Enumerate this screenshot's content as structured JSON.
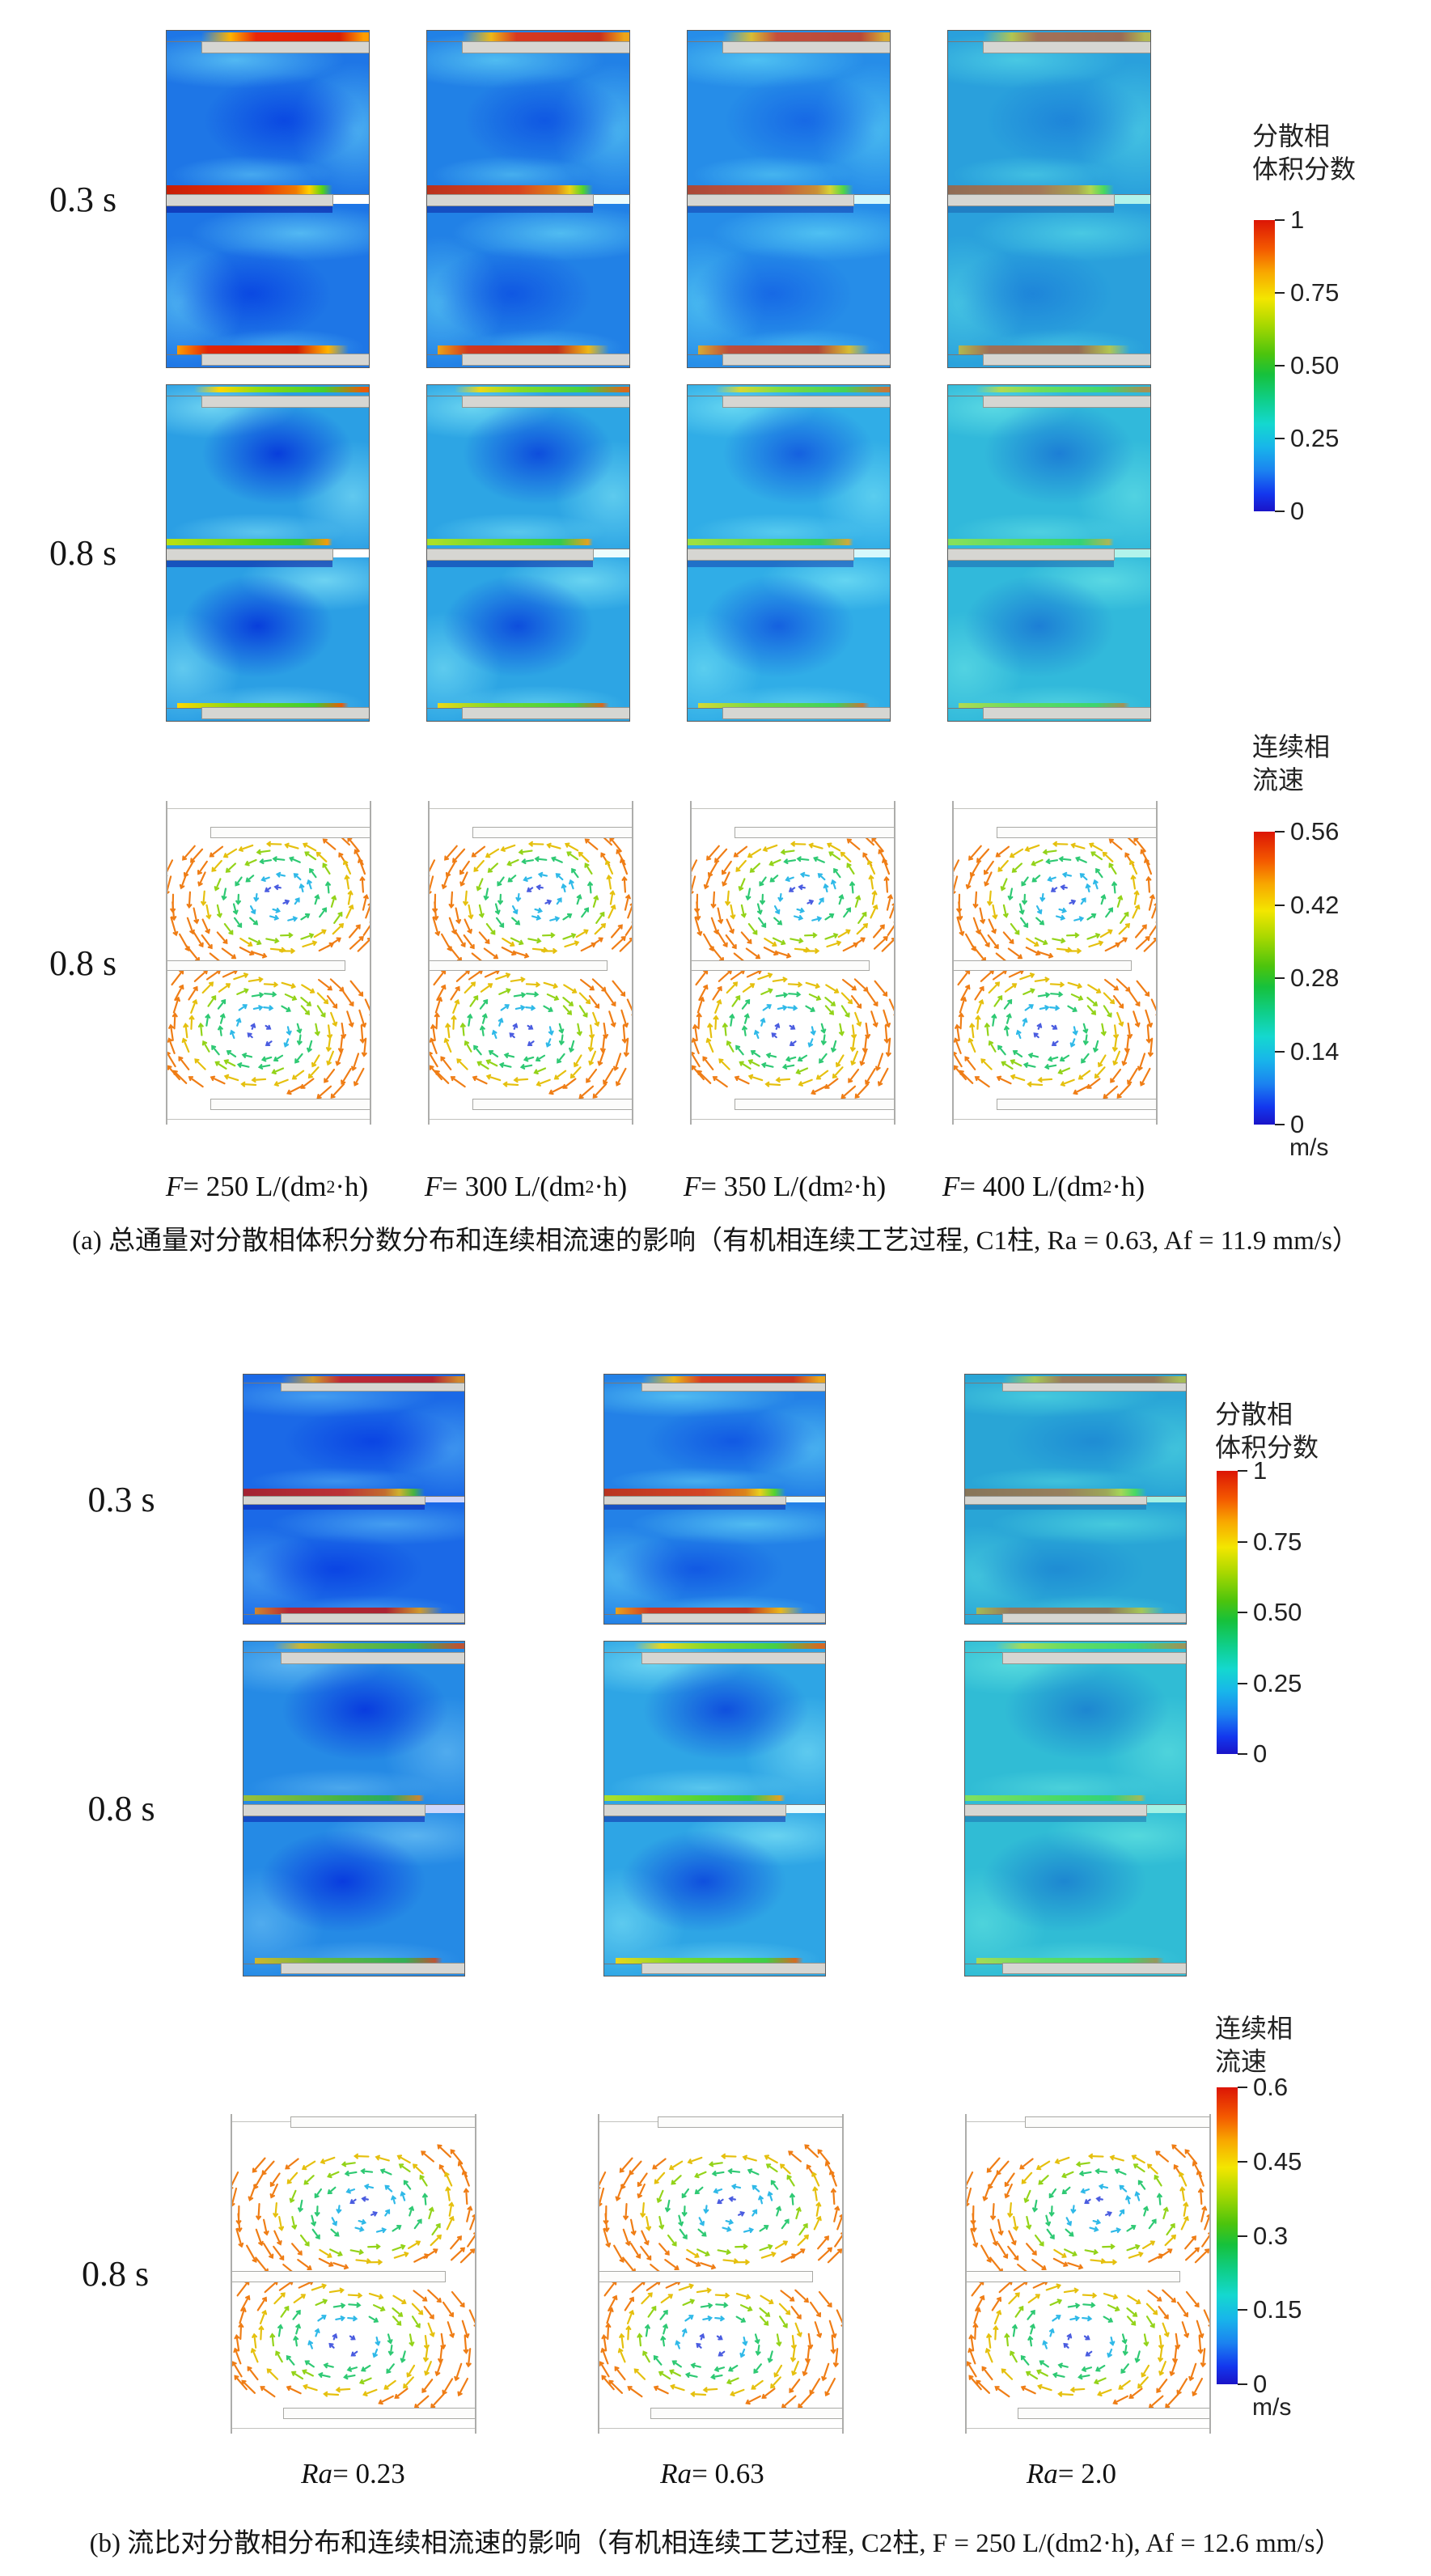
{
  "panel_a": {
    "rows": [
      {
        "time_label": "0.3 s",
        "type": "volume-fraction-contours"
      },
      {
        "time_label": "0.8 s",
        "type": "volume-fraction-contours"
      },
      {
        "time_label": "0.8 s",
        "type": "velocity-vectors"
      }
    ],
    "column_labels": [
      {
        "var": "F",
        "rest": " = 250 L/(dm",
        "sup": "2",
        "tail": "·h)"
      },
      {
        "var": "F",
        "rest": " = 300 L/(dm",
        "sup": "2",
        "tail": "·h)"
      },
      {
        "var": "F",
        "rest": " = 350 L/(dm",
        "sup": "2",
        "tail": "·h)"
      },
      {
        "var": "F",
        "rest": " = 400 L/(dm",
        "sup": "2",
        "tail": "·h)"
      }
    ],
    "colorbar_fraction": {
      "title_line1": "分散相",
      "title_line2": "体积分数",
      "ticks": [
        "1",
        "0.75",
        "0.50",
        "0.25",
        "0"
      ]
    },
    "colorbar_velocity": {
      "title_line1": "连续相",
      "title_line2": "流速",
      "ticks": [
        "0.56",
        "0.42",
        "0.28",
        "0.14",
        "0"
      ],
      "unit": "m/s"
    },
    "caption": "(a) 总通量对分散相体积分数分布和连续相流速的影响（有机相连续工艺过程, C1柱, Ra = 0.63, Af = 11.9 mm/s）"
  },
  "panel_b": {
    "rows": [
      {
        "time_label": "0.3 s",
        "type": "volume-fraction-contours"
      },
      {
        "time_label": "0.8 s",
        "type": "volume-fraction-contours"
      },
      {
        "time_label": "0.8 s",
        "type": "velocity-vectors"
      }
    ],
    "column_labels": [
      {
        "var": "Ra",
        "rest": " = 0.23"
      },
      {
        "var": "Ra",
        "rest": " = 0.63"
      },
      {
        "var": "Ra",
        "rest": " = 2.0"
      }
    ],
    "colorbar_fraction": {
      "title_line1": "分散相",
      "title_line2": "体积分数",
      "ticks": [
        "1",
        "0.75",
        "0.50",
        "0.25",
        "0"
      ]
    },
    "colorbar_velocity": {
      "title_line1": "连续相",
      "title_line2": "流速",
      "ticks": [
        "0.6",
        "0.45",
        "0.3",
        "0.15",
        "0"
      ],
      "unit": "m/s"
    },
    "caption": "(b) 流比对分散相分布和连续相流速的影响（有机相连续工艺过程, C2柱, F = 250 L/(dm2·h), Af = 12.6 mm/s）"
  },
  "colors": {
    "colormap_high": "#dc1505",
    "colormap_mid": "#2bc41e",
    "colormap_low": "#1a14c8",
    "baffle_gray": "#d6d6d2",
    "background": "#ffffff"
  },
  "chart_data": [
    {
      "type": "heatmap",
      "panel": "a",
      "title": "分散相体积分数",
      "colorbar_range": [
        0,
        1
      ],
      "colorbar_ticks": [
        1,
        0.75,
        0.5,
        0.25,
        0
      ],
      "times": [
        "0.3 s",
        "0.8 s"
      ],
      "conditions": [
        "F = 250 L/(dm2·h)",
        "F = 300 L/(dm2·h)",
        "F = 350 L/(dm2·h)",
        "F = 400 L/(dm2·h)"
      ]
    },
    {
      "type": "heatmap",
      "panel": "a",
      "title": "连续相流速",
      "unit": "m/s",
      "colorbar_range": [
        0,
        0.56
      ],
      "colorbar_ticks": [
        0.56,
        0.42,
        0.28,
        0.14,
        0
      ],
      "times": [
        "0.8 s"
      ]
    },
    {
      "type": "heatmap",
      "panel": "b",
      "title": "分散相体积分数",
      "colorbar_range": [
        0,
        1
      ],
      "colorbar_ticks": [
        1,
        0.75,
        0.5,
        0.25,
        0
      ],
      "times": [
        "0.3 s",
        "0.8 s"
      ],
      "conditions": [
        "Ra = 0.23",
        "Ra = 0.63",
        "Ra = 2.0"
      ]
    },
    {
      "type": "heatmap",
      "panel": "b",
      "title": "连续相流速",
      "unit": "m/s",
      "colorbar_range": [
        0,
        0.6
      ],
      "colorbar_ticks": [
        0.6,
        0.45,
        0.3,
        0.15,
        0
      ],
      "times": [
        "0.8 s"
      ]
    }
  ]
}
